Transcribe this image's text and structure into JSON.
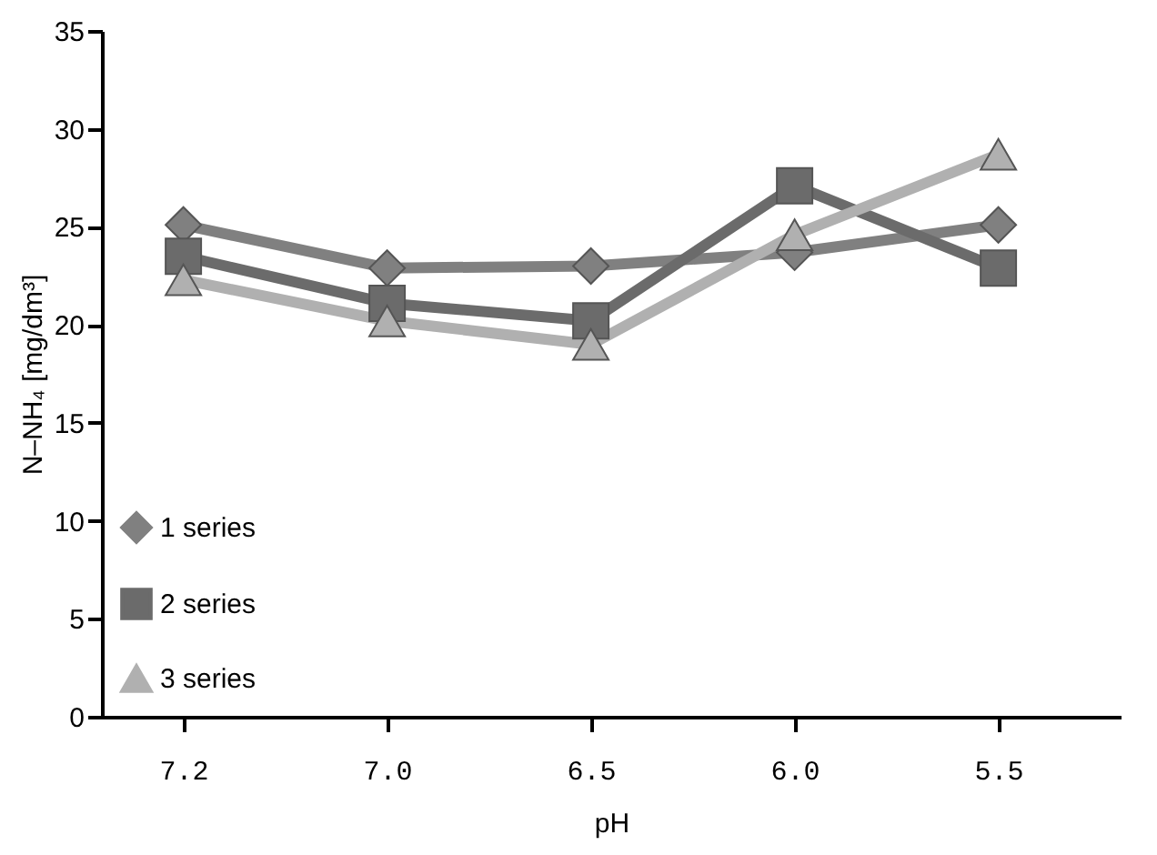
{
  "chart_data": {
    "type": "line",
    "xlabel": "pH",
    "ylabel": "N–NH₄ [mg/dm³]",
    "categories": [
      "7.2",
      "7.0",
      "6.5",
      "6.0",
      "5.5"
    ],
    "series": [
      {
        "name": "1 series",
        "color": "#808080",
        "marker": "diamond",
        "values": [
          25.1,
          22.9,
          23.0,
          23.7,
          25.1
        ]
      },
      {
        "name": "2 series",
        "color": "#6b6b6b",
        "marker": "square",
        "values": [
          23.5,
          21.1,
          20.2,
          27.1,
          22.9
        ]
      },
      {
        "name": "3 series",
        "color": "#b0b0b0",
        "marker": "triangle",
        "values": [
          22.3,
          20.2,
          19.0,
          24.6,
          28.7
        ]
      }
    ],
    "ylim": [
      0,
      35
    ],
    "yticks": [
      0,
      5,
      10,
      15,
      20,
      25,
      30,
      35
    ],
    "grid": false,
    "legend": "bottom left",
    "line_style": "solid"
  }
}
